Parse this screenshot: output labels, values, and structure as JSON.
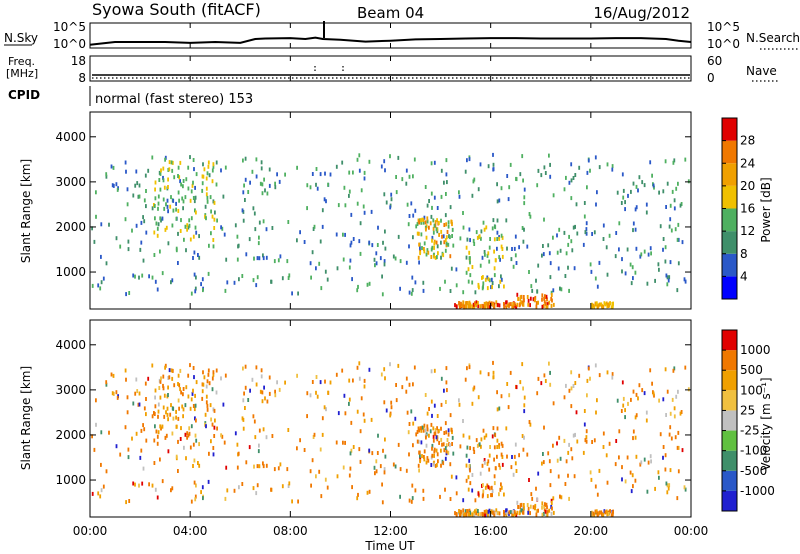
{
  "header": {
    "station": "Syowa South (fitACF)",
    "beam": "Beam 04",
    "date": "16/Aug/2012"
  },
  "noise_panel": {
    "left_label": "N.Sky",
    "right_label": "N.Search",
    "left_ticks": [
      "10^5",
      "10^0"
    ],
    "right_ticks": [
      "10^5",
      "10^0"
    ]
  },
  "freq_panel": {
    "left_label_top": "Freq.",
    "left_label_unit": "[MHz]",
    "right_label": "Nave",
    "left_ticks": [
      "18",
      "8"
    ],
    "right_ticks": [
      "60",
      "0"
    ]
  },
  "cpid_panel": {
    "label": "CPID",
    "mode_text": "normal (fast stereo) 153"
  },
  "range_axis": {
    "label": "Slant Range [km]",
    "ticks": [
      "4000",
      "3000",
      "2000",
      "1000"
    ],
    "tick_values": [
      4000,
      3000,
      2000,
      1000
    ],
    "range": [
      180,
      4550
    ]
  },
  "time_axis": {
    "label": "Time UT",
    "ticks": [
      "00:00",
      "04:00",
      "08:00",
      "12:00",
      "16:00",
      "20:00",
      "00:00"
    ],
    "tick_hours": [
      0,
      4,
      8,
      12,
      16,
      20,
      24
    ]
  },
  "power_scale": {
    "label": "Power [dB]",
    "ticks": [
      "28",
      "24",
      "20",
      "16",
      "12",
      "8",
      "4"
    ],
    "colors": [
      "#0000ff",
      "#2a58c8",
      "#3f8f6a",
      "#4fb060",
      "#f0c000",
      "#f0a000",
      "#f07800",
      "#e00000"
    ]
  },
  "velocity_scale": {
    "label": "Velocity [m s⁻¹]",
    "ticks": [
      "1000",
      "500",
      "100",
      "25",
      "-25",
      "-100",
      "-500",
      "-1000"
    ],
    "colors": [
      "#2020d0",
      "#2a58c8",
      "#3f8f6a",
      "#60c040",
      "#c0c0c0",
      "#f0c040",
      "#f0a000",
      "#f07800",
      "#e00000"
    ]
  },
  "chart_data": [
    {
      "type": "line",
      "title": "N.Sky / N.Search",
      "note": "noise level versus time, log scale 10^0 to 10^5",
      "x_range_hours": [
        0,
        24
      ],
      "x": [
        0,
        0.5,
        1,
        2,
        3,
        4,
        5,
        6,
        6.6,
        7,
        8,
        8.6,
        9,
        9.3,
        10,
        11,
        12,
        13,
        14,
        15,
        16,
        17,
        18,
        19,
        20,
        21,
        22,
        23,
        23.5,
        24
      ],
      "y_log10": [
        0.3,
        0.6,
        0.9,
        0.9,
        0.9,
        0.7,
        0.9,
        0.7,
        1.6,
        1.7,
        1.8,
        1.6,
        1.9,
        1.6,
        1.4,
        1.0,
        1.2,
        1.5,
        1.6,
        1.7,
        1.8,
        1.8,
        1.7,
        1.7,
        1.7,
        1.8,
        1.8,
        1.6,
        1.2,
        0.9
      ]
    },
    {
      "type": "scatter",
      "title": "Power [dB]",
      "xlabel": "Time UT",
      "ylabel": "Slant Range [km]",
      "x_range_hours": [
        0,
        24
      ],
      "ylim": [
        180,
        4550
      ],
      "color_scale": [
        4,
        28
      ],
      "points_description": "scattered echoes 500-3600 km all day; strong (24-32 dB) ground scatter near 200 km at 14:30-18:30 and 20:00-21:00"
    },
    {
      "type": "scatter",
      "title": "Velocity [m s⁻¹]",
      "xlabel": "Time UT",
      "ylabel": "Slant Range [km]",
      "x_range_hours": [
        0,
        24
      ],
      "ylim": [
        180,
        4550
      ],
      "color_scale": [
        -1000,
        1000
      ]
    }
  ]
}
